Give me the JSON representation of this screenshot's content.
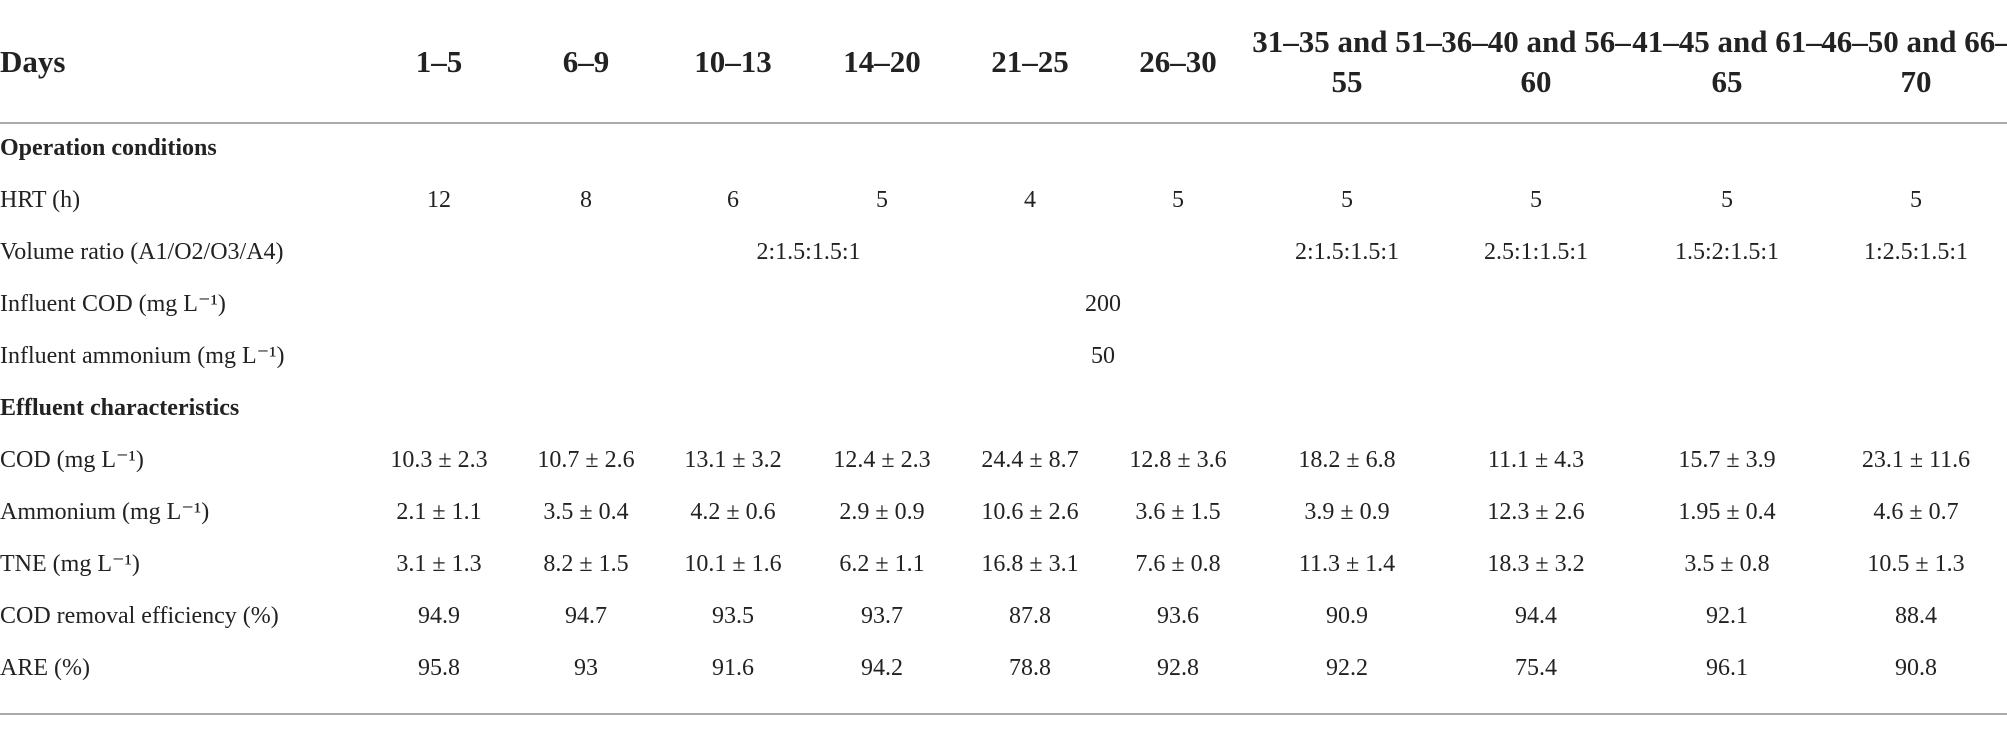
{
  "table": {
    "header": [
      "Days",
      "1–5",
      "6–9",
      "10–13",
      "14–20",
      "21–25",
      "26–30",
      "31–35 and 51–55",
      "36–40 and 56–60",
      "41–45 and 61–65",
      "46–50 and 66–70"
    ],
    "sections": [
      {
        "title": "Operation conditions",
        "rows": [
          {
            "label": "HRT (h)",
            "cells": [
              "12",
              "8",
              "6",
              "5",
              "4",
              "5",
              "5",
              "5",
              "5",
              "5"
            ]
          },
          {
            "label": "Volume ratio (A1/O2/O3/A4)",
            "cells": [
              "2:1.5:1.5:1",
              "2:1.5:1.5:1",
              "2.5:1:1.5:1",
              "1.5:2:1.5:1",
              "1:2.5:1.5:1"
            ]
          },
          {
            "label": "Influent COD (mg L⁻¹)",
            "cells": [
              "200"
            ]
          },
          {
            "label": "Influent ammonium (mg L⁻¹)",
            "cells": [
              "50"
            ]
          }
        ]
      },
      {
        "title": "Effluent characteristics",
        "rows": [
          {
            "label": "COD (mg L⁻¹)",
            "cells": [
              "10.3 ± 2.3",
              "10.7 ± 2.6",
              "13.1 ± 3.2",
              "12.4 ± 2.3",
              "24.4 ± 8.7",
              "12.8 ± 3.6",
              "18.2 ± 6.8",
              "11.1 ± 4.3",
              "15.7 ± 3.9",
              "23.1 ± 11.6"
            ]
          },
          {
            "label": "Ammonium (mg L⁻¹)",
            "cells": [
              "2.1 ± 1.1",
              "3.5 ± 0.4",
              "4.2 ± 0.6",
              "2.9 ± 0.9",
              "10.6 ± 2.6",
              "3.6 ± 1.5",
              "3.9 ± 0.9",
              "12.3 ± 2.6",
              "1.95 ± 0.4",
              "4.6 ± 0.7"
            ]
          },
          {
            "label": "TNE (mg L⁻¹)",
            "cells": [
              "3.1 ± 1.3",
              "8.2 ± 1.5",
              "10.1 ± 1.6",
              "6.2 ± 1.1",
              "16.8 ± 3.1",
              "7.6 ± 0.8",
              "11.3 ± 1.4",
              "18.3 ± 3.2",
              "3.5 ± 0.8",
              "10.5 ± 1.3"
            ]
          },
          {
            "label": "COD removal efficiency (%)",
            "cells": [
              "94.9",
              "94.7",
              "93.5",
              "93.7",
              "87.8",
              "93.6",
              "90.9",
              "94.4",
              "92.1",
              "88.4"
            ]
          },
          {
            "label": "ARE (%)",
            "cells": [
              "95.8",
              "93",
              "91.6",
              "94.2",
              "78.8",
              "92.8",
              "92.2",
              "75.4",
              "96.1",
              "90.8"
            ]
          }
        ]
      }
    ]
  }
}
